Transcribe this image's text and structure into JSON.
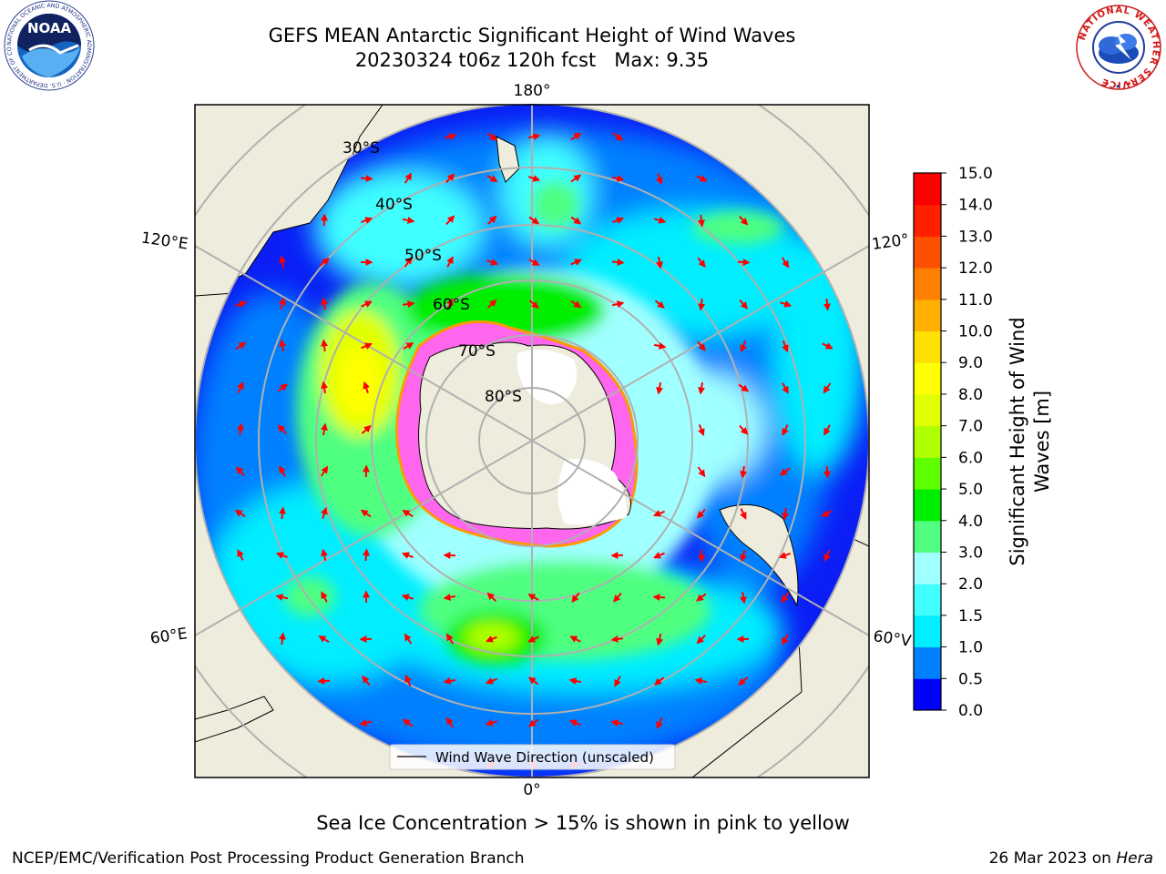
{
  "header": {
    "title": "GEFS MEAN Antarctic Significant Height of Wind Waves",
    "subtitle": "20230324 t06z 120h fcst   Max: 9.35"
  },
  "logos": {
    "left": "NOAA",
    "left_ring": "NATIONAL OCEANIC AND ATMOSPHERIC ADMINISTRATION · U.S. DEPARTMENT OF COMMERCE",
    "right_ring": "NATIONAL WEATHER SERVICE"
  },
  "map": {
    "projection": "south polar stereographic",
    "longitude_labels": {
      "top": "180°",
      "bottom": "0°",
      "upper_left": "120°E",
      "lower_left": "60°E",
      "upper_right": "120°",
      "lower_right": "60°V"
    },
    "latitude_labels": [
      "30°S",
      "40°S",
      "50°S",
      "60°S",
      "70°S",
      "80°S"
    ],
    "legend_label": "Wind Wave Direction (unscaled)",
    "colors": {
      "land": "#eeecdc",
      "ice_sheet": "#ffffff",
      "sea_ice": "#ff44dd",
      "arrow": "#ff0000",
      "grid": "#b0b0b0"
    }
  },
  "colorbar": {
    "label": "Significant Height of Wind Waves [m]",
    "ticks": [
      "0.0",
      "0.5",
      "1.0",
      "1.5",
      "2.0",
      "3.0",
      "4.0",
      "5.0",
      "6.0",
      "7.0",
      "8.0",
      "9.0",
      "10.0",
      "11.0",
      "12.0",
      "13.0",
      "14.0",
      "15.0"
    ],
    "colors": [
      "#0000ff",
      "#0080ff",
      "#00eeff",
      "#40ffff",
      "#a0ffff",
      "#50ff80",
      "#00ee00",
      "#60ff00",
      "#b0ff00",
      "#e0ff00",
      "#ffff00",
      "#ffe000",
      "#ffb000",
      "#ff8000",
      "#ff5000",
      "#ff2000",
      "#ff0000"
    ]
  },
  "note": "Sea Ice Concentration > 15% is shown in pink to yellow",
  "footer": {
    "left": "NCEP/EMC/Verification Post Processing Product Generation Branch",
    "date": "26 Mar 2023 on ",
    "host": "Hera"
  }
}
